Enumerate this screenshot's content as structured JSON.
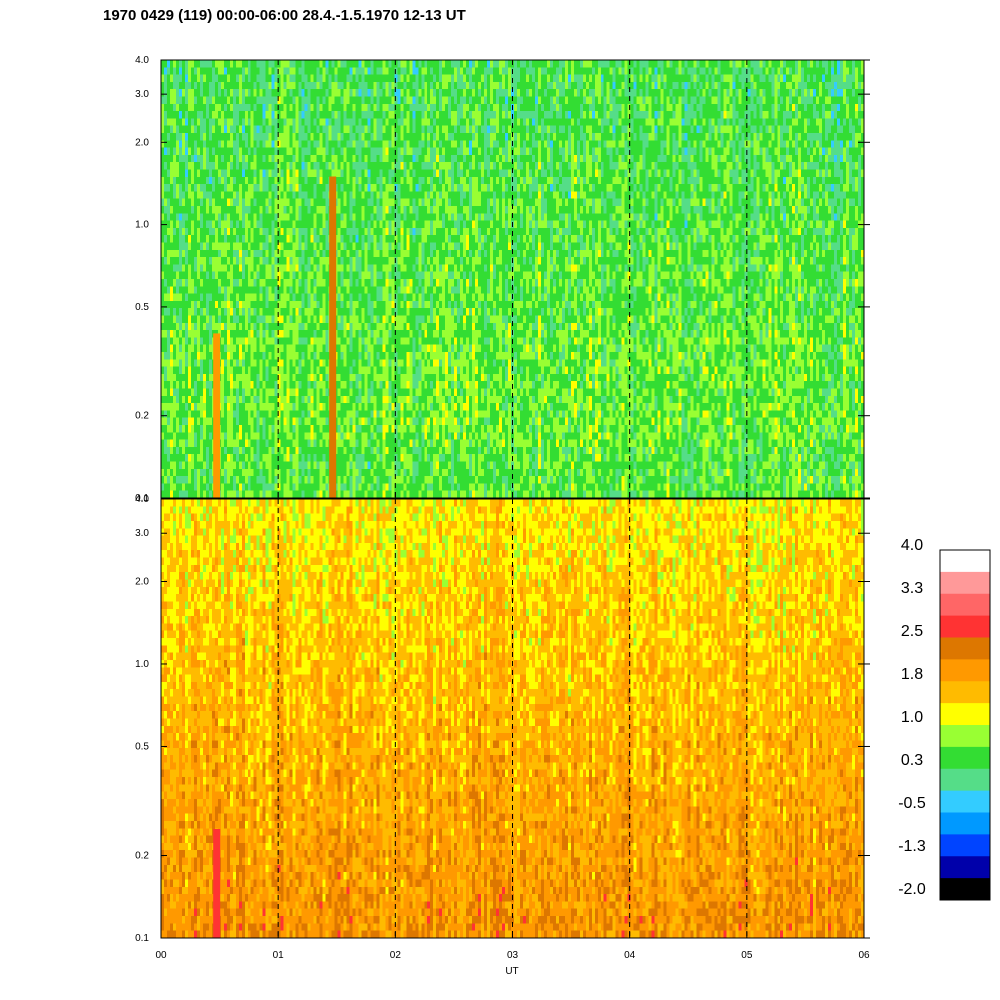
{
  "title": "1970 0429 (119) 00:00-06:00 28.4.-1.5.1970  12-13 UT",
  "x_axis_label": "UT",
  "chart_data": [
    {
      "type": "heatmap",
      "panel": "upper",
      "x_ticks": [
        "00",
        "01",
        "02",
        "03",
        "04",
        "05",
        "06"
      ],
      "x_range": [
        0,
        6
      ],
      "y_scale": "log",
      "y_range": [
        0.1,
        4.0
      ],
      "y_ticks": [
        0.1,
        0.2,
        0.5,
        1.0,
        2.0,
        3.0,
        4.0
      ],
      "y_tick_labels": [
        "0.1",
        "0.2",
        "0.5",
        "1.0",
        "2.0",
        "3.0",
        "4.0"
      ],
      "vertical_dashed_lines_at": [
        1,
        2,
        3,
        4,
        5
      ],
      "dominant_level_range": [
        0.0,
        1.2
      ],
      "notes_series": [
        {
          "x": 0.48,
          "y_range": [
            0.1,
            0.4
          ],
          "level": 2.0
        },
        {
          "x": 1.47,
          "y_range": [
            0.1,
            1.5
          ],
          "level": 2.3
        }
      ]
    },
    {
      "type": "heatmap",
      "panel": "lower",
      "x_ticks": [
        "00",
        "01",
        "02",
        "03",
        "04",
        "05",
        "06"
      ],
      "x_range": [
        0,
        6
      ],
      "y_scale": "log",
      "y_range": [
        0.1,
        4.0
      ],
      "y_ticks": [
        0.1,
        0.2,
        0.5,
        1.0,
        2.0,
        3.0,
        4.0
      ],
      "y_tick_labels": [
        "0.1",
        "0.2",
        "0.5",
        "1.0",
        "2.0",
        "3.0",
        "4.0"
      ],
      "vertical_dashed_lines_at": [
        1,
        2,
        3,
        4,
        5
      ],
      "dominant_level_range": [
        1.0,
        2.4
      ],
      "notes_series": [
        {
          "x": 0.48,
          "y_range": [
            0.1,
            0.25
          ],
          "level": 2.7
        }
      ]
    }
  ],
  "colorbar": {
    "labels": [
      "4.0",
      "3.3",
      "2.5",
      "1.8",
      "1.0",
      "0.3",
      "-0.5",
      "-1.3",
      "-2.0"
    ],
    "colors_top_to_bottom": [
      "#ffffff",
      "#ff9999",
      "#ff6666",
      "#ff3333",
      "#dd7700",
      "#ff9900",
      "#ffbb00",
      "#ffff00",
      "#99ff33",
      "#33dd33",
      "#55dd88",
      "#33ccff",
      "#0099ff",
      "#0044ff",
      "#0000aa",
      "#000000"
    ]
  }
}
